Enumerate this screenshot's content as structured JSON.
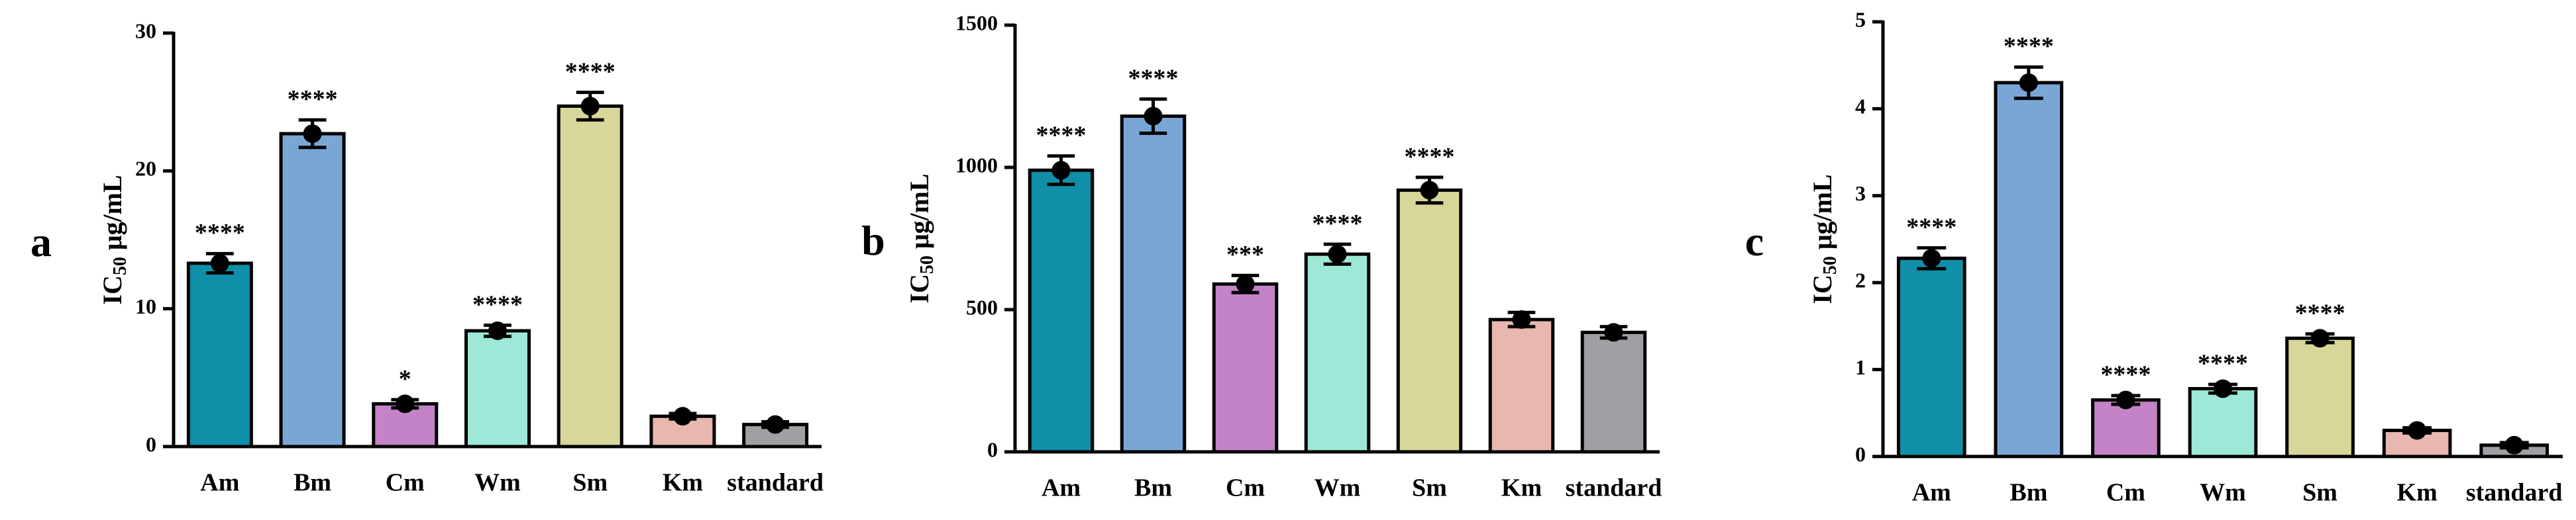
{
  "chart_data": [
    {
      "type": "bar",
      "panel_label": "a",
      "y_label": "IC",
      "y_label_sub": "50",
      "y_label_unit": "μg/mL",
      "categories": [
        "Am",
        "Bm",
        "Cm",
        "Wm",
        "Sm",
        "Km",
        "standard"
      ],
      "values": [
        13.3,
        22.7,
        3.1,
        8.4,
        24.7,
        2.2,
        1.6
      ],
      "errors": [
        0.7,
        1.0,
        0.3,
        0.4,
        1.0,
        0.2,
        0.2
      ],
      "annotations": [
        "****",
        "****",
        "*",
        "****",
        "****",
        null,
        null
      ],
      "colors": [
        "#0f8fa8",
        "#7aa6d6",
        "#c383c6",
        "#9de8d6",
        "#d8d79a",
        "#e8b7b0",
        "#a0a0a4"
      ],
      "ylim": [
        0,
        30
      ],
      "yticks": [
        0,
        10,
        20,
        30
      ]
    },
    {
      "type": "bar",
      "panel_label": "b",
      "y_label": "IC",
      "y_label_sub": "50",
      "y_label_unit": "μg/mL",
      "categories": [
        "Am",
        "Bm",
        "Cm",
        "Wm",
        "Sm",
        "Km",
        "standard"
      ],
      "values": [
        990,
        1180,
        590,
        695,
        920,
        465,
        420
      ],
      "errors": [
        50,
        60,
        30,
        35,
        45,
        25,
        20
      ],
      "annotations": [
        "****",
        "****",
        "***",
        "****",
        "****",
        null,
        null
      ],
      "colors": [
        "#0f8fa8",
        "#7aa6d6",
        "#c383c6",
        "#9de8d6",
        "#d8d79a",
        "#e8b7b0",
        "#a0a0a4"
      ],
      "ylim": [
        0,
        1500
      ],
      "yticks": [
        0,
        500,
        1000,
        1500
      ]
    },
    {
      "type": "bar",
      "panel_label": "c",
      "y_label": "IC",
      "y_label_sub": "50",
      "y_label_unit": "μg/mL",
      "categories": [
        "Am",
        "Bm",
        "Cm",
        "Wm",
        "Sm",
        "Km",
        "standard"
      ],
      "values": [
        2.28,
        4.3,
        0.65,
        0.78,
        1.36,
        0.3,
        0.13
      ],
      "errors": [
        0.12,
        0.18,
        0.05,
        0.05,
        0.05,
        0.03,
        0.03
      ],
      "annotations": [
        "****",
        "****",
        "****",
        "****",
        "****",
        null,
        null
      ],
      "colors": [
        "#0f8fa8",
        "#7aa6d6",
        "#c383c6",
        "#9de8d6",
        "#d8d79a",
        "#e8b7b0",
        "#a0a0a4"
      ],
      "ylim": [
        0,
        5
      ],
      "yticks": [
        0,
        1,
        2,
        3,
        4,
        5
      ]
    }
  ]
}
